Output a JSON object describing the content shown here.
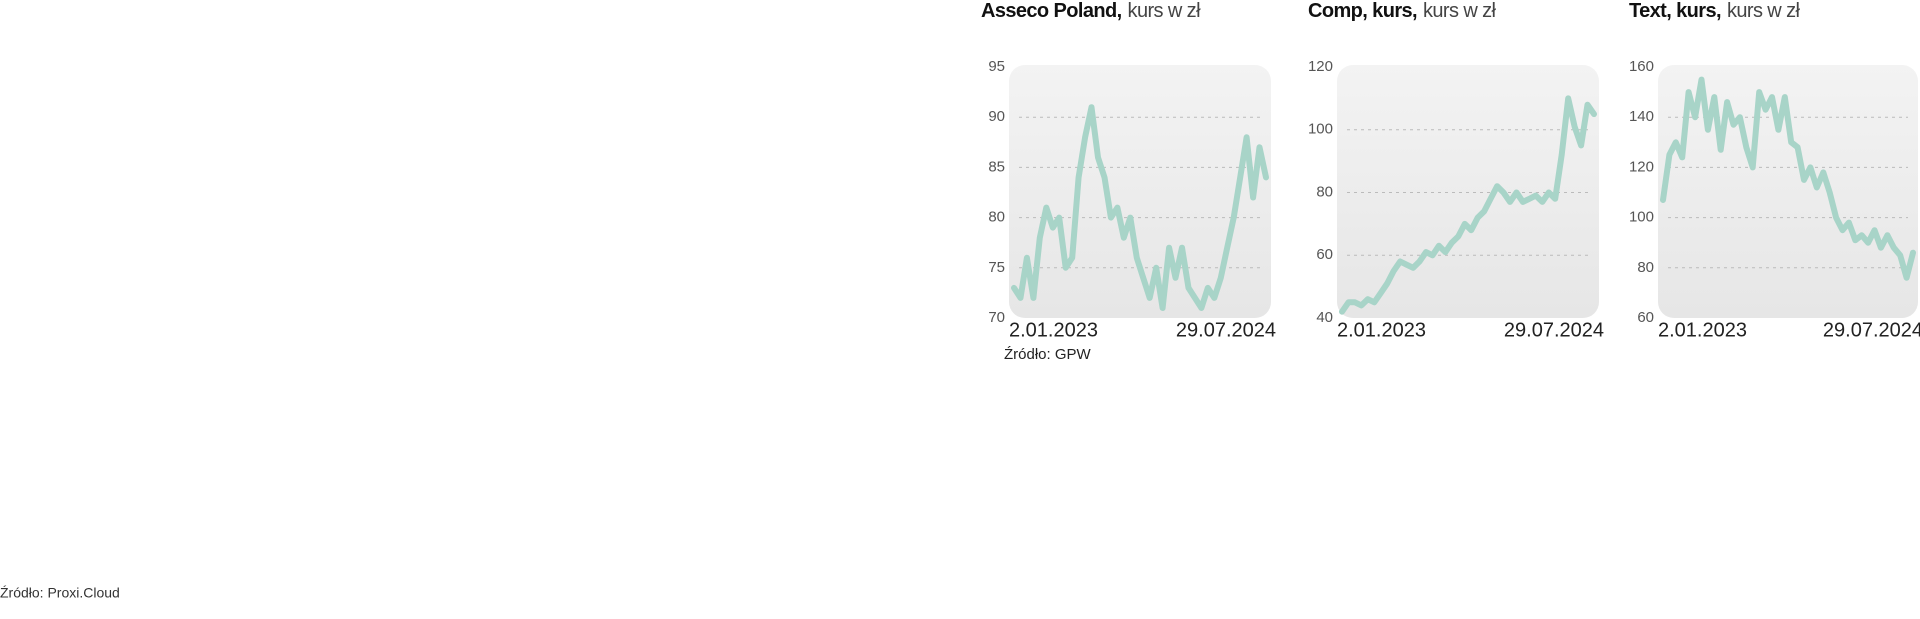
{
  "chart_data": [
    {
      "type": "line",
      "title": "Asseco Poland,",
      "subtitle": "kurs w zł",
      "source": "Źródło: GPW",
      "color": "#a8d4c8",
      "grid": true,
      "x": [
        "2.01.2023",
        null,
        null,
        null,
        null,
        null,
        null,
        null,
        null,
        null,
        null,
        null,
        null,
        null,
        null,
        null,
        null,
        null,
        null,
        null,
        null,
        null,
        null,
        null,
        null,
        null,
        null,
        null,
        null,
        null,
        null,
        null,
        null,
        null,
        null,
        null,
        null,
        null,
        null,
        "29.07.2024"
      ],
      "values": [
        73,
        72,
        76,
        72,
        78,
        81,
        79,
        80,
        75,
        76,
        84,
        88,
        91,
        86,
        84,
        80,
        81,
        78,
        80,
        76,
        74,
        72,
        75,
        71,
        77,
        74,
        77,
        73,
        72,
        71,
        73,
        72,
        74,
        77,
        80,
        84,
        88,
        82,
        87,
        84
      ],
      "ylim": [
        70,
        95
      ],
      "yticks": [
        70,
        75,
        80,
        85,
        90,
        95
      ]
    },
    {
      "type": "line",
      "title": "Comp, kurs,",
      "subtitle": "kurs w zł",
      "color": "#a8d4c8",
      "grid": true,
      "x": [
        "2.01.2023",
        null,
        null,
        null,
        null,
        null,
        null,
        null,
        null,
        null,
        null,
        null,
        null,
        null,
        null,
        null,
        null,
        null,
        null,
        null,
        null,
        null,
        null,
        null,
        null,
        null,
        null,
        null,
        null,
        null,
        null,
        null,
        null,
        null,
        null,
        null,
        null,
        null,
        null,
        "29.07.2024"
      ],
      "values": [
        42,
        45,
        45,
        44,
        46,
        45,
        48,
        51,
        55,
        58,
        57,
        56,
        58,
        61,
        60,
        63,
        61,
        64,
        66,
        70,
        68,
        72,
        74,
        78,
        82,
        80,
        77,
        80,
        77,
        78,
        79,
        77,
        80,
        78,
        92,
        110,
        101,
        95,
        108,
        105
      ],
      "ylim": [
        40,
        120
      ],
      "yticks": [
        40,
        60,
        80,
        100,
        120
      ]
    },
    {
      "type": "line",
      "title": "Text, kurs,",
      "subtitle": "kurs w zł",
      "color": "#a8d4c8",
      "grid": true,
      "x": [
        "2.01.2023",
        null,
        null,
        null,
        null,
        null,
        null,
        null,
        null,
        null,
        null,
        null,
        null,
        null,
        null,
        null,
        null,
        null,
        null,
        null,
        null,
        null,
        null,
        null,
        null,
        null,
        null,
        null,
        null,
        null,
        null,
        null,
        null,
        null,
        null,
        null,
        null,
        null,
        null,
        "29.07.2024"
      ],
      "values": [
        107,
        125,
        130,
        124,
        150,
        140,
        155,
        135,
        148,
        127,
        146,
        137,
        140,
        128,
        120,
        150,
        143,
        148,
        135,
        148,
        130,
        128,
        115,
        120,
        112,
        118,
        110,
        100,
        95,
        98,
        91,
        93,
        90,
        95,
        88,
        93,
        88,
        85,
        76,
        86
      ],
      "ylim": [
        60,
        160
      ],
      "yticks": [
        60,
        80,
        100,
        120,
        140,
        160
      ]
    }
  ],
  "footer": "Źródło: Proxi.Cloud"
}
